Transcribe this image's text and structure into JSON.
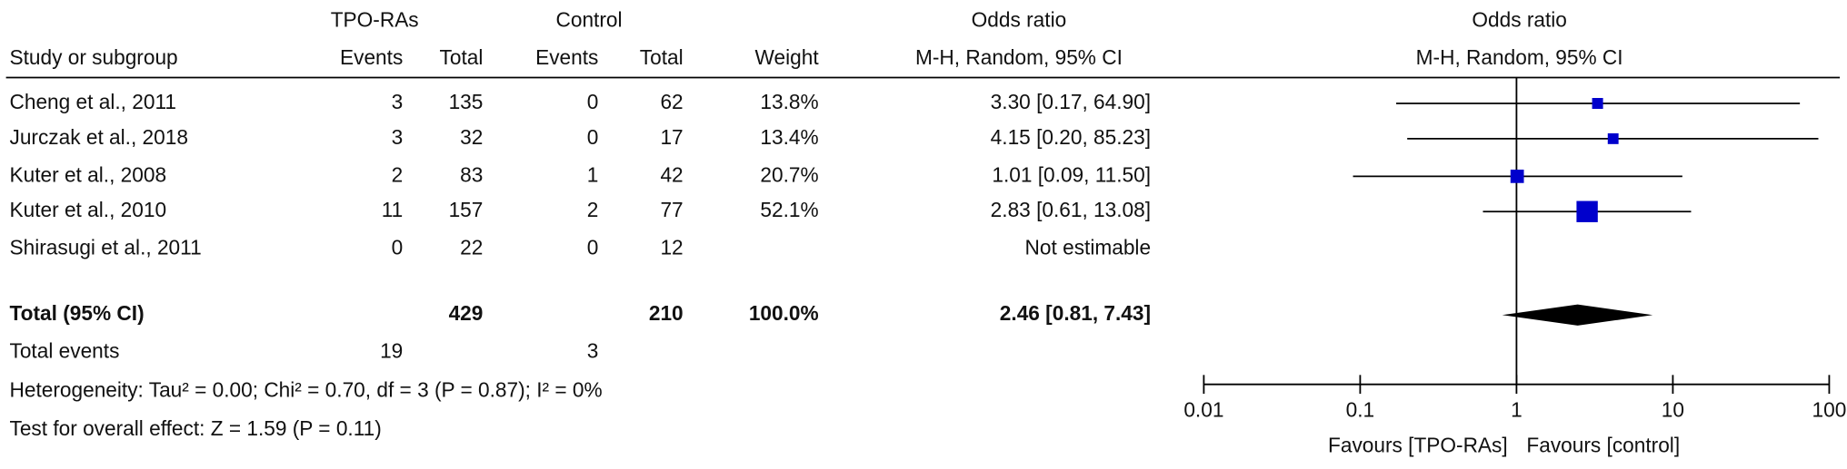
{
  "header": {
    "group1": "TPO-RAs",
    "group2": "Control",
    "or_title": "Odds ratio",
    "columns": [
      "Study or subgroup",
      "Events",
      "Total",
      "Events",
      "Total",
      "Weight",
      "M-H, Random, 95% CI"
    ]
  },
  "plot": {
    "type": "forest",
    "title": "Odds ratio",
    "subtitle": "M-H, Random, 95% CI",
    "scale": "log",
    "xlim": [
      0.01,
      100
    ],
    "xticks": [
      0.01,
      0.1,
      1,
      10,
      100
    ],
    "favours_left": "Favours [TPO-RAs]",
    "favours_right": "Favours [control]",
    "color": "#0000cc"
  },
  "studies": [
    {
      "study": "Cheng et al., 2011",
      "events_t": 3,
      "total_t": 135,
      "events_c": 0,
      "total_c": 62,
      "weight": 13.8,
      "weight_label": "13.8%",
      "or": 3.3,
      "ci": [
        0.17,
        64.9
      ],
      "or_label": "3.30 [0.17, 64.90]"
    },
    {
      "study": "Jurczak et al., 2018",
      "events_t": 3,
      "total_t": 32,
      "events_c": 0,
      "total_c": 17,
      "weight": 13.4,
      "weight_label": "13.4%",
      "or": 4.15,
      "ci": [
        0.2,
        85.23
      ],
      "or_label": "4.15 [0.20, 85.23]"
    },
    {
      "study": "Kuter et al., 2008",
      "events_t": 2,
      "total_t": 83,
      "events_c": 1,
      "total_c": 42,
      "weight": 20.7,
      "weight_label": "20.7%",
      "or": 1.01,
      "ci": [
        0.09,
        11.5
      ],
      "or_label": "1.01 [0.09, 11.50]"
    },
    {
      "study": "Kuter et al., 2010",
      "events_t": 11,
      "total_t": 157,
      "events_c": 2,
      "total_c": 77,
      "weight": 52.1,
      "weight_label": "52.1%",
      "or": 2.83,
      "ci": [
        0.61,
        13.08
      ],
      "or_label": "2.83 [0.61, 13.08]"
    },
    {
      "study": "Shirasugi et al., 2011",
      "events_t": 0,
      "total_t": 22,
      "events_c": 0,
      "total_c": 12,
      "weight": null,
      "weight_label": null,
      "or": null,
      "ci": null,
      "or_label": "Not estimable"
    }
  ],
  "total": {
    "label": "Total (95% CI)",
    "total_t": 429,
    "total_c": 210,
    "weight_label": "100.0%",
    "or": 2.46,
    "ci": [
      0.81,
      7.43
    ],
    "or_label": "2.46 [0.81, 7.43]"
  },
  "total_events": {
    "label": "Total events",
    "events_t": 19,
    "events_c": 3
  },
  "heterogeneity": "Heterogeneity: Tau² = 0.00; Chi² = 0.70, df = 3 (P = 0.87); I² = 0%",
  "overall_effect": "Test for overall effect: Z = 1.59 (P = 0.11)"
}
